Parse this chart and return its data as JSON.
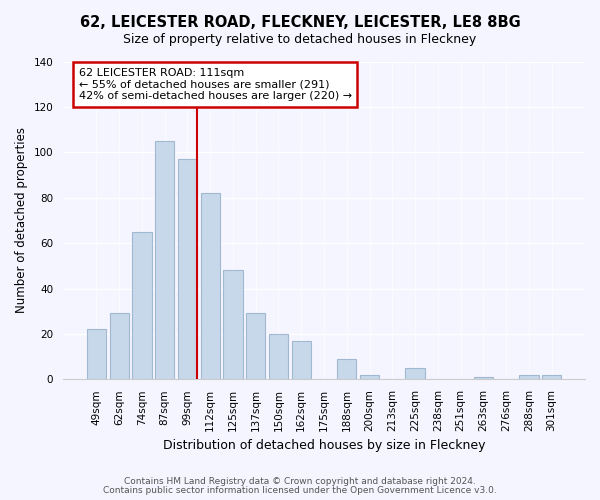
{
  "title": "62, LEICESTER ROAD, FLECKNEY, LEICESTER, LE8 8BG",
  "subtitle": "Size of property relative to detached houses in Fleckney",
  "xlabel": "Distribution of detached houses by size in Fleckney",
  "ylabel": "Number of detached properties",
  "bar_labels": [
    "49sqm",
    "62sqm",
    "74sqm",
    "87sqm",
    "99sqm",
    "112sqm",
    "125sqm",
    "137sqm",
    "150sqm",
    "162sqm",
    "175sqm",
    "188sqm",
    "200sqm",
    "213sqm",
    "225sqm",
    "238sqm",
    "251sqm",
    "263sqm",
    "276sqm",
    "288sqm",
    "301sqm"
  ],
  "bar_values": [
    22,
    29,
    65,
    105,
    97,
    82,
    48,
    29,
    20,
    17,
    0,
    9,
    2,
    0,
    5,
    0,
    0,
    1,
    0,
    2,
    2
  ],
  "bar_color": "#c8d8eb",
  "bar_edge_color": "#a0b8d0",
  "bar_width": 0.85,
  "vline_position": 4.425,
  "vline_color": "#cc0000",
  "annotation_title": "62 LEICESTER ROAD: 111sqm",
  "annotation_line1": "← 55% of detached houses are smaller (291)",
  "annotation_line2": "42% of semi-detached houses are larger (220) →",
  "annotation_box_facecolor": "#ffffff",
  "annotation_box_edgecolor": "#cc0000",
  "ylim": [
    0,
    140
  ],
  "yticks": [
    0,
    20,
    40,
    60,
    80,
    100,
    120,
    140
  ],
  "footnote1": "Contains HM Land Registry data © Crown copyright and database right 2024.",
  "footnote2": "Contains public sector information licensed under the Open Government Licence v3.0.",
  "background_color": "#f5f5ff",
  "grid_color": "#ffffff",
  "title_fontsize": 10.5,
  "subtitle_fontsize": 9,
  "ylabel_fontsize": 8.5,
  "xlabel_fontsize": 9,
  "tick_fontsize": 7.5,
  "footnote_fontsize": 6.5
}
